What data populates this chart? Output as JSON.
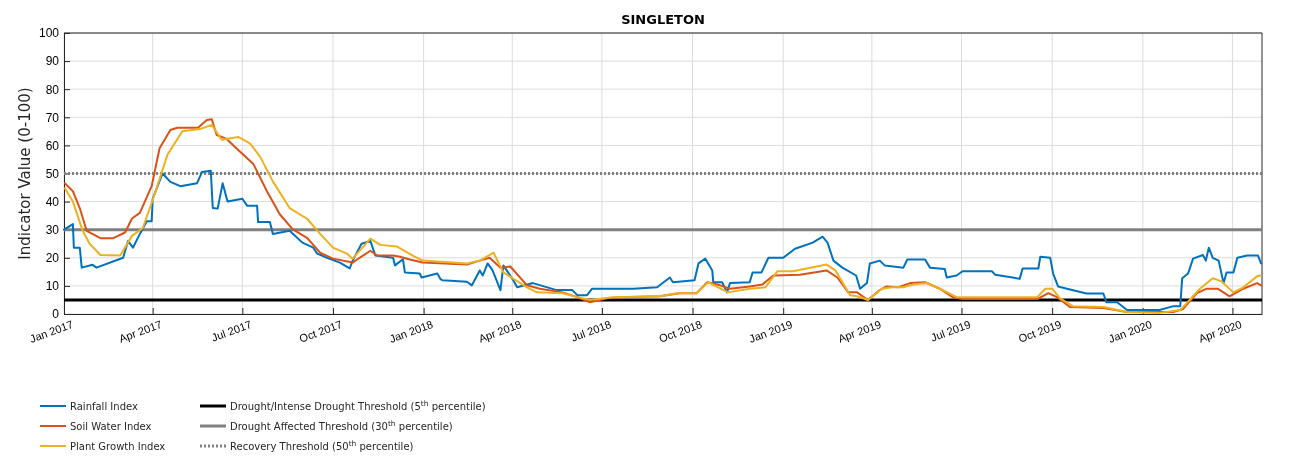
{
  "chart_data": {
    "type": "line",
    "title": "SINGLETON",
    "ylabel": "Indicator Value (0-100)",
    "xlim": [
      "2017-01-01",
      "2020-05-01"
    ],
    "ylim": [
      0,
      100
    ],
    "yticks": [
      0,
      10,
      20,
      30,
      40,
      50,
      60,
      70,
      80,
      90,
      100
    ],
    "xticks": [
      {
        "value": "2017-01-01",
        "label": "Jan 2017"
      },
      {
        "value": "2017-04-01",
        "label": "Apr 2017"
      },
      {
        "value": "2017-07-01",
        "label": "Jul 2017"
      },
      {
        "value": "2017-10-01",
        "label": "Oct 2017"
      },
      {
        "value": "2018-01-01",
        "label": "Jan 2018"
      },
      {
        "value": "2018-04-01",
        "label": "Apr 2018"
      },
      {
        "value": "2018-07-01",
        "label": "Jul 2018"
      },
      {
        "value": "2018-10-01",
        "label": "Oct 2018"
      },
      {
        "value": "2019-01-01",
        "label": "Jan 2019"
      },
      {
        "value": "2019-04-01",
        "label": "Apr 2019"
      },
      {
        "value": "2019-07-01",
        "label": "Jul 2019"
      },
      {
        "value": "2019-10-01",
        "label": "Oct 2019"
      },
      {
        "value": "2020-01-01",
        "label": "Jan 2020"
      },
      {
        "value": "2020-04-01",
        "label": "Apr 2020"
      }
    ],
    "grid": true,
    "legend": "bottom",
    "line_style": "solid",
    "marker": "none",
    "ref_lines": [
      {
        "axis": "y",
        "value": 5,
        "label": "Drought/Intense Drought Threshold (5$^{th}$ percentile)",
        "color": "#000000",
        "line_style": "solid"
      },
      {
        "axis": "y",
        "value": 30,
        "label": "Drought Affected Threshold (30$^{th}$ percentile)",
        "color": "#808080",
        "line_style": "solid"
      },
      {
        "axis": "y",
        "value": 50,
        "label": "Recovery Threshold (50$^{th}$ percentile)",
        "color": "#808080",
        "line_style": "dotted"
      }
    ],
    "series": [
      {
        "name": "Rainfall Index",
        "color": "#0072bd",
        "x": [
          "2017-01-01",
          "2017-01-10",
          "2017-01-11",
          "2017-01-17",
          "2017-01-19",
          "2017-01-30",
          "2017-02-03",
          "2017-03-02",
          "2017-03-07",
          "2017-03-12",
          "2017-03-19",
          "2017-03-26",
          "2017-03-31",
          "2017-04-01",
          "2017-04-11",
          "2017-04-19",
          "2017-04-29",
          "2017-05-16",
          "2017-05-21",
          "2017-05-30",
          "2017-06-01",
          "2017-06-06",
          "2017-06-11",
          "2017-06-16",
          "2017-07-01",
          "2017-07-06",
          "2017-07-16",
          "2017-07-17",
          "2017-07-29",
          "2017-08-01",
          "2017-08-18",
          "2017-08-31",
          "2017-09-11",
          "2017-09-15",
          "2017-09-25",
          "2017-10-08",
          "2017-10-18",
          "2017-10-21",
          "2017-10-30",
          "2017-11-08",
          "2017-11-13",
          "2017-12-01",
          "2017-12-03",
          "2017-12-11",
          "2017-12-13",
          "2017-12-28",
          "2017-12-30",
          "2018-01-15",
          "2018-01-18",
          "2018-01-20",
          "2018-02-14",
          "2018-02-19",
          "2018-02-27",
          "2018-03-02",
          "2018-03-07",
          "2018-03-12",
          "2018-03-20",
          "2018-03-23",
          "2018-04-02",
          "2018-04-06",
          "2018-04-22",
          "2018-05-16",
          "2018-06-01",
          "2018-06-06",
          "2018-06-16",
          "2018-06-21",
          "2018-08-02",
          "2018-08-26",
          "2018-09-08",
          "2018-09-11",
          "2018-10-03",
          "2018-10-07",
          "2018-10-14",
          "2018-10-21",
          "2018-10-22",
          "2018-10-31",
          "2018-11-05",
          "2018-11-08",
          "2018-11-28",
          "2018-12-01",
          "2018-12-10",
          "2018-12-17",
          "2019-01-01",
          "2019-01-13",
          "2019-01-31",
          "2019-02-10",
          "2019-02-15",
          "2019-02-21",
          "2019-03-02",
          "2019-03-16",
          "2019-03-20",
          "2019-03-27",
          "2019-03-30",
          "2019-04-09",
          "2019-04-14",
          "2019-05-03",
          "2019-05-07",
          "2019-05-25",
          "2019-05-30",
          "2019-06-14",
          "2019-06-16",
          "2019-06-26",
          "2019-07-02",
          "2019-08-01",
          "2019-08-04",
          "2019-08-22",
          "2019-08-29",
          "2019-09-01",
          "2019-09-17",
          "2019-09-19",
          "2019-09-29",
          "2019-10-02",
          "2019-10-07",
          "2019-10-16",
          "2019-11-05",
          "2019-11-22",
          "2019-11-25",
          "2019-12-06",
          "2019-12-16",
          "2019-12-26",
          "2020-01-18",
          "2020-02-01",
          "2020-02-08",
          "2020-02-10",
          "2020-02-16",
          "2020-02-21",
          "2020-03-02",
          "2020-03-05",
          "2020-03-08",
          "2020-03-12",
          "2020-03-18",
          "2020-03-23",
          "2020-03-26",
          "2020-04-02",
          "2020-04-06",
          "2020-04-16",
          "2020-04-27",
          "2020-04-30"
        ],
        "values": [
          30,
          32,
          23.6,
          23.6,
          16.5,
          17.5,
          16.5,
          20,
          26,
          23.6,
          28.5,
          33,
          33,
          41,
          50,
          47,
          45.5,
          46.5,
          50.5,
          51,
          37.7,
          37.5,
          46.5,
          40,
          41,
          38.5,
          38.5,
          32.7,
          32.7,
          28.5,
          29.6,
          25.4,
          23.6,
          21.5,
          20,
          18.3,
          16.2,
          19,
          25,
          26,
          20.8,
          20,
          17.3,
          19.5,
          14.8,
          14.4,
          13,
          14.4,
          12.5,
          12,
          11.5,
          10.2,
          15.5,
          13.7,
          18,
          15.5,
          8.5,
          17.3,
          12,
          9.5,
          11,
          8.5,
          8.5,
          6.7,
          6.7,
          9,
          9,
          9.5,
          13,
          11.3,
          12,
          18,
          19.7,
          15.5,
          11.3,
          11.3,
          7.7,
          11,
          11.3,
          14.8,
          14.8,
          20,
          20,
          23.2,
          25.4,
          27.5,
          25.4,
          19,
          16.5,
          13.7,
          9,
          11,
          18,
          19,
          17.3,
          16.5,
          19.4,
          19.4,
          16.5,
          16,
          13,
          13.7,
          15.2,
          15.2,
          14,
          13,
          12.5,
          16.2,
          16.2,
          20.4,
          20,
          14.4,
          9.8,
          9,
          7.3,
          7.3,
          4.2,
          4.2,
          1.4,
          1.4,
          1.4,
          2.8,
          2.8,
          12.7,
          14.4,
          19.7,
          21,
          19,
          23.6,
          20,
          19,
          11,
          14.8,
          14.8,
          20,
          20.8,
          20.8,
          18
        ]
      },
      {
        "name": "Soil Water Index",
        "color": "#d95319",
        "x": [
          "2017-01-02",
          "2017-01-10",
          "2017-01-17",
          "2017-01-24",
          "2017-02-07",
          "2017-02-20",
          "2017-03-04",
          "2017-03-11",
          "2017-03-19",
          "2017-03-31",
          "2017-04-08",
          "2017-04-19",
          "2017-04-26",
          "2017-05-17",
          "2017-05-26",
          "2017-05-31",
          "2017-06-05",
          "2017-06-15",
          "2017-07-02",
          "2017-07-12",
          "2017-07-26",
          "2017-08-08",
          "2017-08-21",
          "2017-09-05",
          "2017-09-18",
          "2017-10-01",
          "2017-10-21",
          "2017-10-28",
          "2017-11-08",
          "2017-11-15",
          "2017-12-01",
          "2017-12-08",
          "2017-12-18",
          "2017-12-31",
          "2018-02-14",
          "2018-02-27",
          "2018-03-09",
          "2018-03-20",
          "2018-03-30",
          "2018-04-16",
          "2018-04-29",
          "2018-05-22",
          "2018-06-06",
          "2018-06-19",
          "2018-07-06",
          "2018-07-19",
          "2018-08-29",
          "2018-09-18",
          "2018-10-05",
          "2018-10-16",
          "2018-10-29",
          "2018-11-08",
          "2018-11-28",
          "2018-12-11",
          "2018-12-22",
          "2019-01-18",
          "2019-02-14",
          "2019-02-25",
          "2019-03-08",
          "2019-03-17",
          "2019-03-28",
          "2019-04-09",
          "2019-04-16",
          "2019-04-28",
          "2019-05-10",
          "2019-05-25",
          "2019-06-09",
          "2019-06-22",
          "2019-07-02",
          "2019-07-30",
          "2019-09-16",
          "2019-09-27",
          "2019-10-06",
          "2019-10-19",
          "2019-11-22",
          "2019-12-16",
          "2020-02-01",
          "2020-02-11",
          "2020-02-25",
          "2020-03-06",
          "2020-03-17",
          "2020-03-29",
          "2020-04-12",
          "2020-04-26",
          "2020-04-30"
        ],
        "values": [
          46.5,
          43.7,
          37.7,
          29.6,
          27,
          27,
          29,
          34,
          36,
          45.5,
          59,
          65.5,
          66.3,
          66.3,
          69,
          69.3,
          63.7,
          62.3,
          56.7,
          53.5,
          43.7,
          35.5,
          30.2,
          27,
          21.8,
          19.7,
          18.3,
          20,
          22.5,
          20.8,
          20.8,
          20.4,
          19.4,
          18.3,
          17.6,
          19,
          20,
          16.5,
          16.9,
          10.2,
          9,
          7.7,
          6,
          4.2,
          5.6,
          6,
          6.3,
          7.4,
          7.4,
          11.3,
          10.2,
          9,
          9.8,
          10.5,
          13.7,
          14,
          15.5,
          13,
          7.7,
          7.7,
          5,
          8.5,
          9.8,
          9.5,
          11,
          11.3,
          9,
          6,
          5.3,
          5.3,
          5.3,
          7.4,
          6,
          2.5,
          2.1,
          0.7,
          0.7,
          1.8,
          7.4,
          9,
          9,
          6.3,
          9,
          11,
          10.2
        ]
      },
      {
        "name": "Plant Growth Index",
        "color": "#edb120",
        "x": [
          "2017-01-02",
          "2017-01-10",
          "2017-01-20",
          "2017-01-27",
          "2017-02-07",
          "2017-02-27",
          "2017-03-11",
          "2017-03-22",
          "2017-04-03",
          "2017-04-16",
          "2017-05-01",
          "2017-05-19",
          "2017-05-31",
          "2017-06-10",
          "2017-06-27",
          "2017-07-09",
          "2017-07-19",
          "2017-08-01",
          "2017-08-18",
          "2017-09-05",
          "2017-09-18",
          "2017-10-01",
          "2017-10-15",
          "2017-10-21",
          "2017-11-08",
          "2017-11-18",
          "2017-12-05",
          "2017-12-21",
          "2017-12-31",
          "2018-02-14",
          "2018-02-27",
          "2018-03-13",
          "2018-03-23",
          "2018-04-16",
          "2018-04-26",
          "2018-05-22",
          "2018-06-06",
          "2018-06-19",
          "2018-07-12",
          "2018-08-29",
          "2018-09-15",
          "2018-10-05",
          "2018-10-17",
          "2018-11-06",
          "2018-11-28",
          "2018-12-14",
          "2018-12-26",
          "2019-01-11",
          "2019-02-14",
          "2019-02-23",
          "2019-03-10",
          "2019-03-17",
          "2019-03-28",
          "2019-04-11",
          "2019-04-22",
          "2019-05-03",
          "2019-05-13",
          "2019-05-27",
          "2019-06-12",
          "2019-06-26",
          "2019-07-07",
          "2019-09-16",
          "2019-09-24",
          "2019-10-01",
          "2019-10-09",
          "2019-10-22",
          "2019-11-22",
          "2019-12-16",
          "2020-01-18",
          "2020-02-08",
          "2020-02-28",
          "2020-03-12",
          "2020-03-21",
          "2020-04-02",
          "2020-04-12",
          "2020-04-26",
          "2020-04-30"
        ],
        "values": [
          44.7,
          40,
          29.6,
          25,
          21,
          20.8,
          27.8,
          30.6,
          42.6,
          56.7,
          65,
          65.8,
          67.3,
          62,
          63,
          60.6,
          56,
          47.2,
          37.7,
          33.8,
          28.5,
          23.6,
          21.5,
          19.7,
          26.8,
          24.6,
          24,
          20.8,
          19,
          18,
          19,
          21.8,
          14.8,
          9.5,
          7.7,
          7.4,
          6,
          5,
          6,
          6.3,
          7.4,
          7.4,
          11.3,
          7.7,
          9,
          9.5,
          15.2,
          15.2,
          17.6,
          15.5,
          6.7,
          6.3,
          5,
          9,
          9.5,
          9.5,
          10.5,
          11,
          8.5,
          6,
          6,
          6,
          9,
          9,
          5.6,
          2.8,
          2.5,
          0.7,
          0.4,
          1.4,
          9,
          12.7,
          11.6,
          7.7,
          9.5,
          13.4,
          13.7
        ]
      }
    ]
  }
}
